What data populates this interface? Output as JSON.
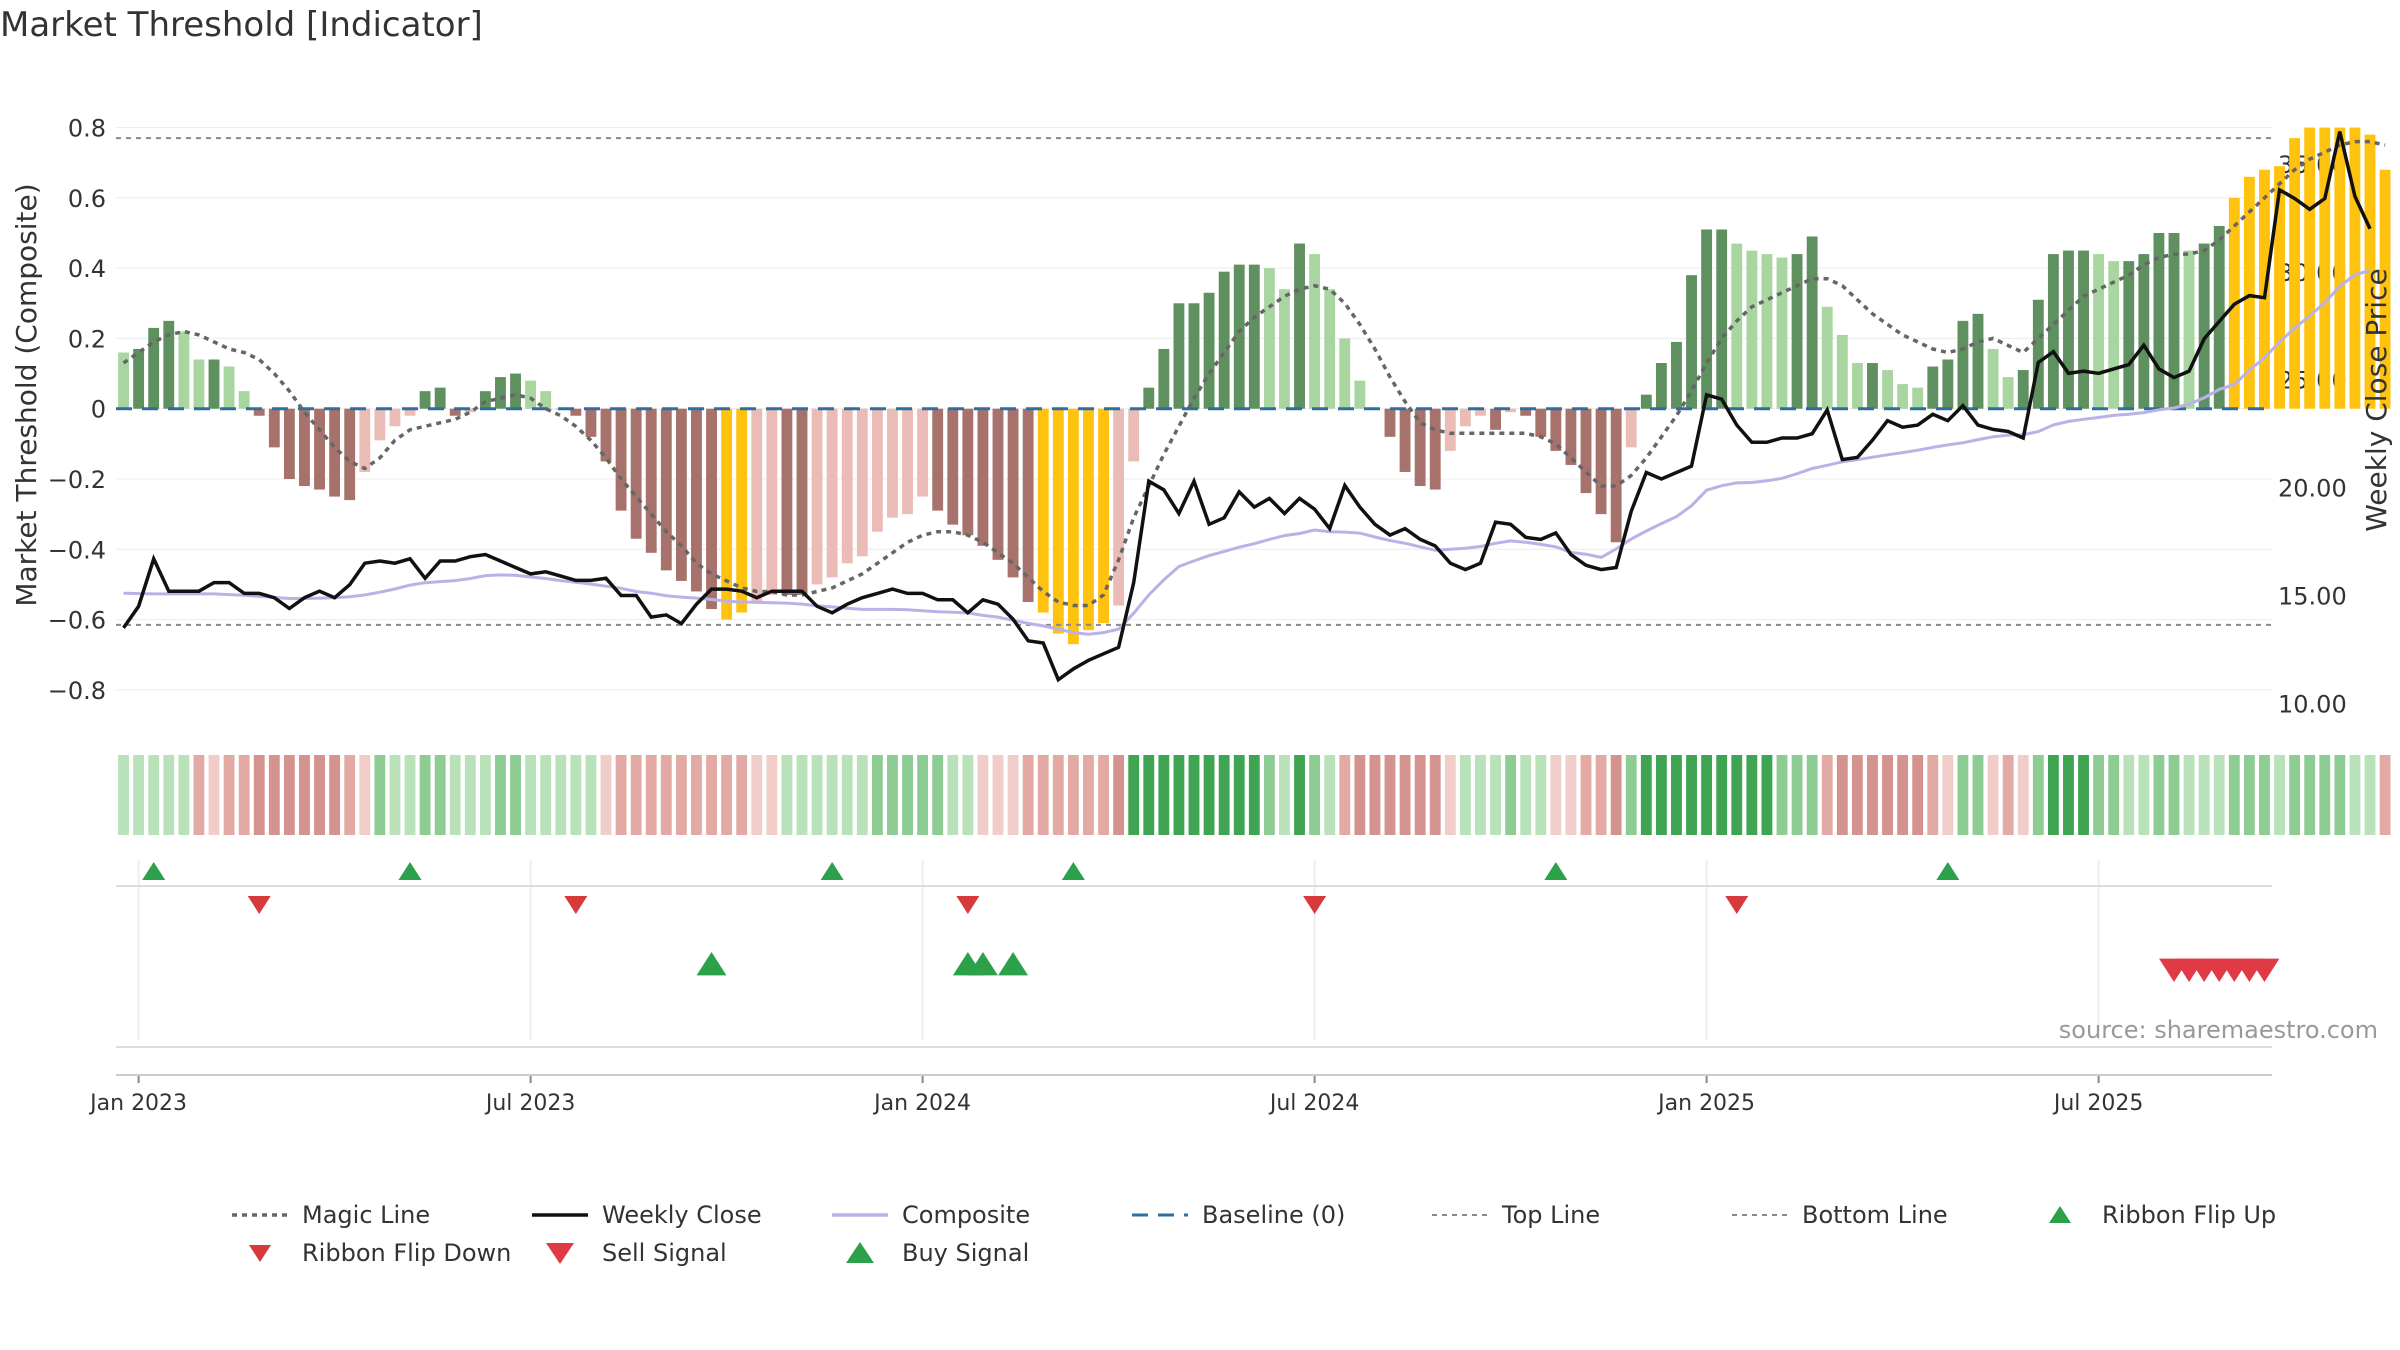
{
  "chart_data": {
    "type": "bar",
    "title": "Market Threshold [Indicator]",
    "ylabel": "Market Threshold (Composite)",
    "y2label": "Weekly Close Price",
    "source": "source: sharemaestro.com",
    "ylim": [
      -0.9,
      0.85
    ],
    "y2lim": [
      9.0,
      37.5
    ],
    "yticks": [
      {
        "v": 0.8,
        "label": "0.8"
      },
      {
        "v": 0.6,
        "label": "0.6"
      },
      {
        "v": 0.4,
        "label": "0.4"
      },
      {
        "v": 0.2,
        "label": "0.2"
      },
      {
        "v": 0,
        "label": "0"
      },
      {
        "v": -0.2,
        "label": "−0.2"
      },
      {
        "v": -0.4,
        "label": "−0.4"
      },
      {
        "v": -0.6,
        "label": "−0.6"
      },
      {
        "v": -0.8,
        "label": "−0.8"
      }
    ],
    "y2ticks": [
      {
        "v": 35,
        "label": "35.00"
      },
      {
        "v": 30,
        "label": "30.00"
      },
      {
        "v": 25,
        "label": "25.00"
      },
      {
        "v": 20,
        "label": "20.00"
      },
      {
        "v": 15,
        "label": "15.00"
      },
      {
        "v": 10,
        "label": "10.00"
      }
    ],
    "xticks": [
      {
        "week": 1,
        "label": "Jan 2023"
      },
      {
        "week": 27,
        "label": "Jul 2023"
      },
      {
        "week": 53,
        "label": "Jan 2024"
      },
      {
        "week": 79,
        "label": "Jul 2024"
      },
      {
        "week": 105,
        "label": "Jan 2025"
      },
      {
        "week": 131,
        "label": "Jul 2025"
      }
    ],
    "weeks": 143,
    "top_line": 0.77,
    "bottom_line": -0.615,
    "series": [
      {
        "name": "Composite (bars)",
        "values": [
          0.16,
          0.17,
          0.23,
          0.25,
          0.22,
          0.14,
          0.14,
          0.12,
          0.05,
          -0.02,
          -0.11,
          -0.2,
          -0.22,
          -0.23,
          -0.25,
          -0.26,
          -0.18,
          -0.09,
          -0.05,
          -0.02,
          0.05,
          0.06,
          -0.02,
          -0.01,
          0.05,
          0.09,
          0.1,
          0.08,
          0.05,
          0.0,
          -0.02,
          -0.08,
          -0.15,
          -0.29,
          -0.37,
          -0.41,
          -0.46,
          -0.49,
          -0.52,
          -0.57,
          -0.6,
          -0.58,
          -0.55,
          -0.53,
          -0.53,
          -0.53,
          -0.5,
          -0.48,
          -0.44,
          -0.42,
          -0.35,
          -0.31,
          -0.3,
          -0.25,
          -0.29,
          -0.33,
          -0.36,
          -0.39,
          -0.43,
          -0.48,
          -0.55,
          -0.58,
          -0.64,
          -0.67,
          -0.63,
          -0.61,
          -0.56,
          -0.15,
          0.06,
          0.17,
          0.3,
          0.3,
          0.33,
          0.39,
          0.41,
          0.41,
          0.4,
          0.34,
          0.47,
          0.44,
          0.34,
          0.2,
          0.08,
          0.0,
          -0.08,
          -0.18,
          -0.22,
          -0.23,
          -0.12,
          -0.05,
          -0.02,
          -0.06,
          -0.01,
          -0.02,
          -0.08,
          -0.12,
          -0.16,
          -0.24,
          -0.3,
          -0.38,
          -0.11,
          0.04,
          0.13,
          0.19,
          0.38,
          0.51,
          0.51,
          0.47,
          0.45,
          0.44,
          0.43,
          0.44,
          0.49,
          0.29,
          0.21,
          0.13,
          0.13,
          0.11,
          0.07,
          0.06,
          0.12,
          0.14,
          0.25,
          0.27,
          0.17,
          0.09,
          0.11,
          0.31,
          0.44,
          0.45,
          0.45,
          0.44,
          0.42,
          0.42,
          0.44,
          0.5,
          0.5,
          0.45,
          0.47,
          0.52,
          0.6,
          0.66,
          0.68,
          0.69,
          0.77,
          0.8,
          0.8,
          0.8,
          0.8,
          0.78,
          0.68
        ]
      },
      {
        "name": "Magic Line",
        "values": [
          0.13,
          0.16,
          0.19,
          0.21,
          0.22,
          0.21,
          0.19,
          0.17,
          0.16,
          0.14,
          0.1,
          0.05,
          -0.01,
          -0.06,
          -0.11,
          -0.15,
          -0.17,
          -0.14,
          -0.09,
          -0.06,
          -0.05,
          -0.04,
          -0.03,
          -0.01,
          0.02,
          0.03,
          0.04,
          0.03,
          0.0,
          -0.02,
          -0.05,
          -0.09,
          -0.14,
          -0.2,
          -0.25,
          -0.3,
          -0.35,
          -0.39,
          -0.44,
          -0.47,
          -0.49,
          -0.51,
          -0.52,
          -0.52,
          -0.53,
          -0.53,
          -0.52,
          -0.51,
          -0.49,
          -0.47,
          -0.44,
          -0.41,
          -0.38,
          -0.36,
          -0.35,
          -0.35,
          -0.36,
          -0.38,
          -0.41,
          -0.44,
          -0.48,
          -0.52,
          -0.55,
          -0.56,
          -0.56,
          -0.53,
          -0.43,
          -0.31,
          -0.22,
          -0.13,
          -0.05,
          0.03,
          0.1,
          0.16,
          0.22,
          0.26,
          0.29,
          0.32,
          0.34,
          0.35,
          0.34,
          0.3,
          0.24,
          0.17,
          0.09,
          0.02,
          -0.04,
          -0.06,
          -0.07,
          -0.07,
          -0.07,
          -0.07,
          -0.07,
          -0.07,
          -0.08,
          -0.1,
          -0.14,
          -0.18,
          -0.22,
          -0.22,
          -0.19,
          -0.14,
          -0.08,
          -0.02,
          0.05,
          0.13,
          0.2,
          0.25,
          0.29,
          0.31,
          0.33,
          0.35,
          0.37,
          0.37,
          0.35,
          0.31,
          0.27,
          0.24,
          0.21,
          0.19,
          0.17,
          0.16,
          0.17,
          0.19,
          0.2,
          0.18,
          0.16,
          0.2,
          0.24,
          0.28,
          0.32,
          0.34,
          0.36,
          0.38,
          0.41,
          0.43,
          0.44,
          0.44,
          0.45,
          0.48,
          0.52,
          0.56,
          0.6,
          0.64,
          0.68,
          0.71,
          0.73,
          0.75,
          0.76,
          0.76,
          0.75
        ]
      },
      {
        "name": "Weekly Close",
        "values": [
          13.5,
          14.5,
          16.7,
          15.2,
          15.2,
          15.2,
          15.6,
          15.6,
          15.1,
          15.1,
          14.9,
          14.4,
          14.9,
          15.2,
          14.9,
          15.5,
          16.5,
          16.6,
          16.5,
          16.7,
          15.8,
          16.6,
          16.6,
          16.8,
          16.9,
          16.6,
          16.3,
          16.0,
          16.1,
          15.9,
          15.7,
          15.7,
          15.8,
          15.0,
          15.0,
          14.0,
          14.1,
          13.7,
          14.6,
          15.3,
          15.3,
          15.2,
          14.9,
          15.2,
          15.2,
          15.2,
          14.5,
          14.2,
          14.6,
          14.9,
          15.1,
          15.3,
          15.1,
          15.1,
          14.8,
          14.8,
          14.2,
          14.8,
          14.6,
          13.9,
          12.9,
          12.8,
          11.1,
          11.6,
          12.0,
          12.3,
          12.6,
          15.6,
          20.3,
          19.9,
          18.8,
          20.3,
          18.3,
          18.6,
          19.8,
          19.1,
          19.5,
          18.8,
          19.5,
          19.0,
          18.1,
          20.1,
          19.1,
          18.3,
          17.8,
          18.1,
          17.6,
          17.3,
          16.5,
          16.2,
          16.5,
          18.4,
          18.3,
          17.7,
          17.6,
          17.9,
          16.9,
          16.4,
          16.2,
          16.3,
          18.9,
          20.7,
          20.4,
          20.7,
          21.0,
          24.3,
          24.1,
          22.9,
          22.1,
          22.1,
          22.3,
          22.3,
          22.5,
          23.6,
          21.3,
          21.4,
          22.2,
          23.1,
          22.8,
          22.9,
          23.4,
          23.1,
          23.8,
          22.9,
          22.7,
          22.6,
          22.3,
          25.8,
          26.3,
          25.3,
          25.4,
          25.3,
          25.5,
          25.7,
          26.6,
          25.5,
          25.1,
          25.4,
          26.9,
          27.7,
          28.5,
          28.9,
          28.8,
          33.8,
          33.4,
          32.9,
          33.4,
          36.5,
          33.5,
          32.0
        ]
      },
      {
        "name": "Composite",
        "values": [
          -0.525,
          -0.526,
          -0.527,
          -0.527,
          -0.527,
          -0.527,
          -0.527,
          -0.529,
          -0.531,
          -0.534,
          -0.537,
          -0.54,
          -0.54,
          -0.539,
          -0.538,
          -0.535,
          -0.53,
          -0.522,
          -0.513,
          -0.502,
          -0.495,
          -0.492,
          -0.489,
          -0.483,
          -0.475,
          -0.473,
          -0.474,
          -0.479,
          -0.483,
          -0.489,
          -0.494,
          -0.499,
          -0.505,
          -0.511,
          -0.52,
          -0.525,
          -0.532,
          -0.536,
          -0.539,
          -0.543,
          -0.548,
          -0.55,
          -0.551,
          -0.552,
          -0.553,
          -0.556,
          -0.561,
          -0.564,
          -0.568,
          -0.571,
          -0.571,
          -0.571,
          -0.572,
          -0.575,
          -0.578,
          -0.579,
          -0.581,
          -0.588,
          -0.593,
          -0.602,
          -0.611,
          -0.618,
          -0.627,
          -0.637,
          -0.642,
          -0.637,
          -0.627,
          -0.582,
          -0.53,
          -0.487,
          -0.449,
          -0.433,
          -0.418,
          -0.406,
          -0.394,
          -0.384,
          -0.372,
          -0.361,
          -0.355,
          -0.345,
          -0.35,
          -0.351,
          -0.354,
          -0.365,
          -0.375,
          -0.383,
          -0.393,
          -0.403,
          -0.4,
          -0.397,
          -0.392,
          -0.383,
          -0.376,
          -0.38,
          -0.386,
          -0.393,
          -0.409,
          -0.414,
          -0.423,
          -0.399,
          -0.371,
          -0.348,
          -0.327,
          -0.307,
          -0.276,
          -0.232,
          -0.219,
          -0.211,
          -0.21,
          -0.205,
          -0.198,
          -0.185,
          -0.17,
          -0.161,
          -0.151,
          -0.145,
          -0.138,
          -0.131,
          -0.125,
          -0.118,
          -0.11,
          -0.103,
          -0.097,
          -0.088,
          -0.08,
          -0.075,
          -0.074,
          -0.065,
          -0.046,
          -0.036,
          -0.03,
          -0.025,
          -0.019,
          -0.016,
          -0.011,
          -0.003,
          0.002,
          0.013,
          0.031,
          0.055,
          0.069,
          0.11,
          0.145,
          0.19,
          0.229,
          0.264,
          0.302,
          0.348,
          0.381,
          0.393
        ]
      },
      {
        "name": "Ribbon Flip Up",
        "weeks": [
          2,
          19,
          47,
          63,
          95,
          121
        ]
      },
      {
        "name": "Ribbon Flip Down",
        "weeks": [
          9,
          30,
          56,
          79,
          107
        ]
      },
      {
        "name": "Buy Signal",
        "weeks": [
          39,
          56,
          57,
          59
        ]
      },
      {
        "name": "Sell Signal",
        "weeks": [
          136,
          137,
          138,
          139,
          140,
          141,
          142
        ]
      }
    ],
    "legend": [
      {
        "key": "magic",
        "label": "Magic Line"
      },
      {
        "key": "close",
        "label": "Weekly Close"
      },
      {
        "key": "composite",
        "label": "Composite"
      },
      {
        "key": "baseline",
        "label": "Baseline (0)"
      },
      {
        "key": "top",
        "label": "Top Line"
      },
      {
        "key": "bottom",
        "label": "Bottom Line"
      },
      {
        "key": "flipup",
        "label": "Ribbon Flip Up"
      },
      {
        "key": "flipdown",
        "label": "Ribbon Flip Down"
      },
      {
        "key": "sell",
        "label": "Sell Signal"
      },
      {
        "key": "buy",
        "label": "Buy Signal"
      }
    ],
    "colors": {
      "strong_pos": "#5f9060",
      "weak_pos": "#a8d5a0",
      "strong_neg": "#a8726c",
      "weak_neg": "#ebbcb5",
      "extreme": "#ffc20e",
      "magic": "#666666",
      "close": "#111111",
      "composite": "#bab2e6",
      "baseline": "#2f6f9f",
      "guide": "#888888",
      "up": "#2ca04a",
      "down": "#d63a3a",
      "sell": "#e03b44"
    }
  }
}
